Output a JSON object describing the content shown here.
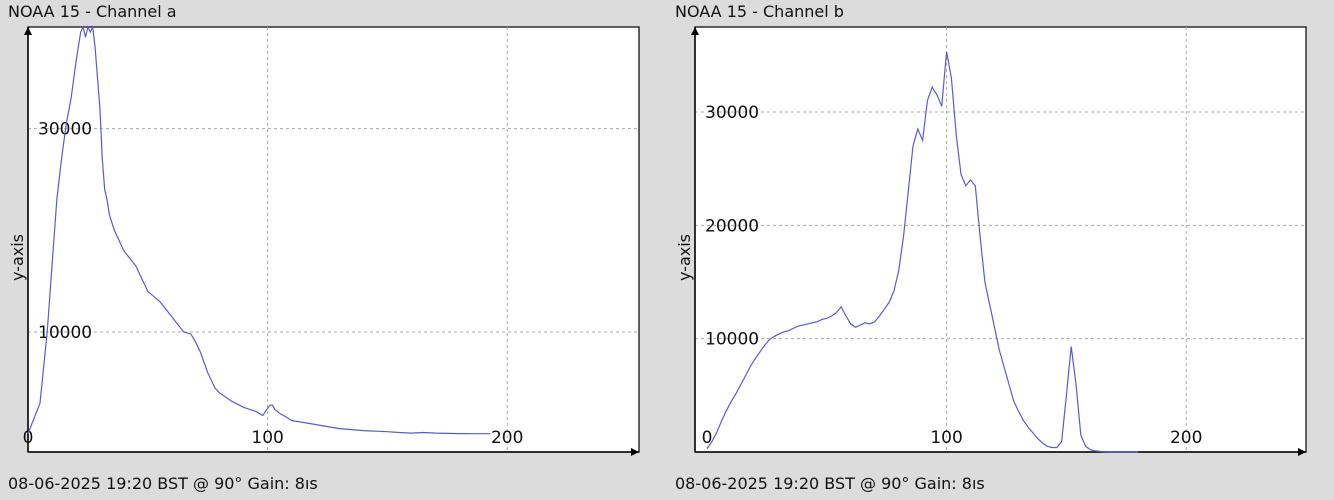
{
  "chart_data": [
    {
      "type": "line",
      "title": "NOAA 15 - Channel a",
      "ylabel": "y-axis",
      "footer": "08-06-2025 19:20 BST @ 90° Gain: 8ıs",
      "xlim": [
        0,
        255
      ],
      "ylim": [
        -1800,
        40000
      ],
      "xgrid": [
        100,
        200
      ],
      "ygrid": [
        10000,
        30000
      ],
      "xticks": [
        0,
        100,
        200
      ],
      "yticks": [
        10000,
        30000
      ],
      "series": [
        {
          "x": [
            0,
            5,
            8,
            12,
            14,
            16,
            18,
            20,
            22,
            23,
            24,
            25,
            26,
            27,
            28,
            29,
            30,
            31,
            32,
            33,
            34,
            36,
            38,
            40,
            45,
            50,
            55,
            60,
            65,
            68,
            70,
            72,
            75,
            78,
            80,
            85,
            90,
            95,
            98,
            100,
            101,
            102,
            103,
            105,
            108,
            110,
            115,
            120,
            125,
            130,
            140,
            150,
            155,
            160,
            165,
            170,
            175,
            180,
            185,
            188,
            190,
            193
          ],
          "y": [
            0,
            3000,
            10000,
            23000,
            27000,
            30500,
            33000,
            36500,
            39500,
            40000,
            39000,
            40000,
            39500,
            40000,
            38000,
            35000,
            32000,
            27000,
            24000,
            23000,
            21500,
            20000,
            19000,
            18000,
            16500,
            14000,
            13000,
            11500,
            10000,
            9800,
            9000,
            8000,
            6000,
            4500,
            4000,
            3200,
            2600,
            2200,
            1800,
            2500,
            2800,
            2800,
            2400,
            2000,
            1600,
            1300,
            1100,
            900,
            700,
            500,
            300,
            200,
            120,
            60,
            120,
            60,
            30,
            10,
            0,
            0,
            0,
            0
          ]
        }
      ]
    },
    {
      "type": "line",
      "title": "NOAA 15 - Channel b",
      "ylabel": "y-axis",
      "footer": "08-06-2025 19:20 BST @ 90° Gain: 8ıs",
      "xlim": [
        -5,
        250
      ],
      "ylim": [
        0,
        37500
      ],
      "xgrid": [
        100,
        200
      ],
      "ygrid": [
        10000,
        20000,
        30000
      ],
      "xticks": [
        0,
        100,
        200
      ],
      "yticks": [
        10000,
        20000,
        30000
      ],
      "series": [
        {
          "x": [
            0,
            2,
            4,
            6,
            8,
            10,
            12,
            14,
            16,
            18,
            20,
            22,
            24,
            26,
            28,
            30,
            32,
            34,
            36,
            38,
            40,
            42,
            44,
            46,
            48,
            50,
            52,
            54,
            56,
            58,
            60,
            62,
            64,
            66,
            68,
            70,
            72,
            74,
            76,
            78,
            80,
            82,
            84,
            86,
            88,
            90,
            92,
            94,
            96,
            98,
            99,
            100,
            102,
            104,
            106,
            108,
            110,
            112,
            114,
            116,
            118,
            120,
            122,
            124,
            126,
            128,
            130,
            132,
            134,
            136,
            138,
            140,
            142,
            144,
            146,
            148,
            150,
            152,
            154,
            156,
            158,
            160,
            162,
            164,
            166,
            168,
            170,
            172,
            174,
            176,
            178,
            180
          ],
          "y": [
            300,
            900,
            1700,
            2700,
            3600,
            4400,
            5100,
            5900,
            6700,
            7500,
            8200,
            8800,
            9400,
            9900,
            10200,
            10400,
            10600,
            10700,
            10900,
            11100,
            11200,
            11300,
            11400,
            11500,
            11700,
            11800,
            12000,
            12300,
            12800,
            12000,
            11300,
            11000,
            11200,
            11400,
            11300,
            11500,
            12000,
            12600,
            13200,
            14200,
            16000,
            19000,
            23000,
            27000,
            28500,
            27500,
            31000,
            32200,
            31500,
            30500,
            33000,
            35300,
            33000,
            28000,
            24500,
            23500,
            24000,
            23500,
            19000,
            15000,
            13000,
            11000,
            9000,
            7500,
            6000,
            4500,
            3600,
            2800,
            2200,
            1700,
            1200,
            800,
            500,
            400,
            400,
            900,
            5000,
            9300,
            6000,
            1500,
            500,
            200,
            100,
            50,
            20,
            10,
            0,
            0,
            0,
            0,
            0,
            0
          ]
        }
      ]
    }
  ]
}
